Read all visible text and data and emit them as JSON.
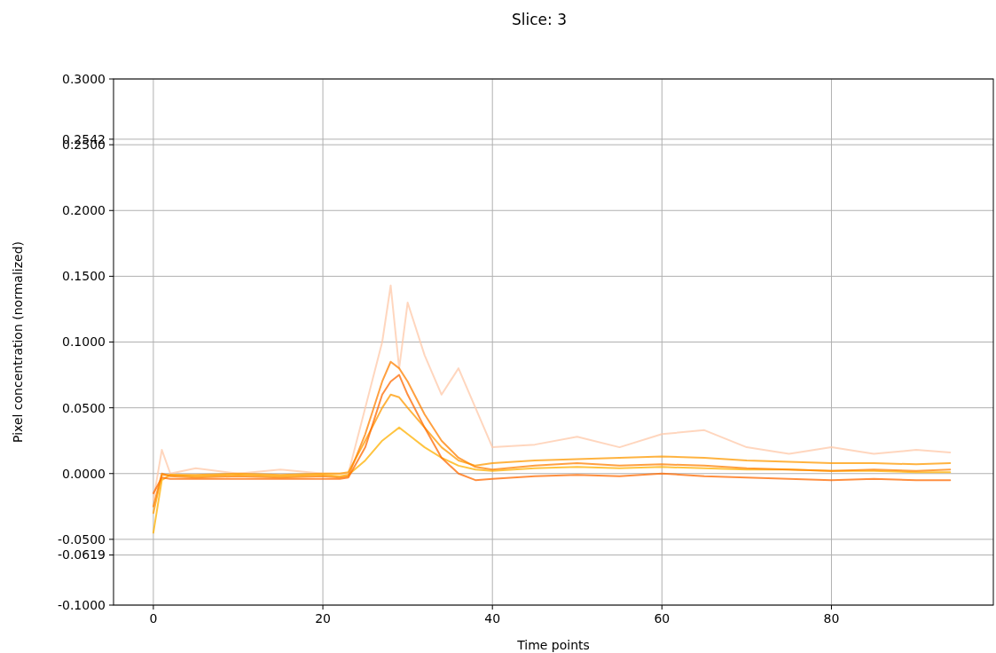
{
  "chart_data": {
    "type": "line",
    "title": "Slice: 3",
    "xlabel": "Time points",
    "ylabel": "Pixel concentration (normalized)",
    "x": [
      0,
      1,
      2,
      5,
      10,
      15,
      20,
      22,
      23,
      25,
      27,
      28,
      29,
      30,
      32,
      34,
      36,
      38,
      40,
      45,
      50,
      55,
      60,
      65,
      70,
      75,
      80,
      85,
      90,
      94
    ],
    "series": [
      {
        "color": "#ffc8a8",
        "values": [
          -0.02,
          0.018,
          0.0,
          0.004,
          0.0,
          0.003,
          0.0,
          0.0,
          0.0,
          0.05,
          0.1,
          0.143,
          0.08,
          0.13,
          0.09,
          0.06,
          0.08,
          0.05,
          0.02,
          0.022,
          0.028,
          0.02,
          0.03,
          0.033,
          0.02,
          0.015,
          0.02,
          0.015,
          0.018,
          0.016
        ]
      },
      {
        "color": "#ffb000",
        "values": [
          -0.045,
          -0.005,
          -0.001,
          -0.002,
          -0.001,
          -0.002,
          -0.001,
          -0.002,
          -0.001,
          0.01,
          0.025,
          0.03,
          0.035,
          0.03,
          0.02,
          0.012,
          0.006,
          0.003,
          0.002,
          0.004,
          0.005,
          0.004,
          0.005,
          0.004,
          0.003,
          0.003,
          0.002,
          0.002,
          0.001,
          0.001
        ]
      },
      {
        "color": "#ff9a00",
        "values": [
          -0.03,
          -0.001,
          -0.001,
          -0.001,
          0.0,
          -0.001,
          0.0,
          0.0,
          0.001,
          0.025,
          0.05,
          0.06,
          0.058,
          0.05,
          0.035,
          0.02,
          0.01,
          0.006,
          0.008,
          0.01,
          0.011,
          0.012,
          0.013,
          0.012,
          0.01,
          0.009,
          0.008,
          0.008,
          0.007,
          0.008
        ]
      },
      {
        "color": "#ff6a00",
        "values": [
          -0.015,
          -0.003,
          -0.004,
          -0.004,
          -0.004,
          -0.004,
          -0.004,
          -0.004,
          -0.003,
          0.02,
          0.06,
          0.07,
          0.075,
          0.06,
          0.035,
          0.012,
          0.0,
          -0.005,
          -0.004,
          -0.002,
          -0.001,
          -0.002,
          0.0,
          -0.002,
          -0.003,
          -0.004,
          -0.005,
          -0.004,
          -0.005,
          -0.005
        ]
      },
      {
        "color": "#ff8000",
        "values": [
          -0.025,
          0.0,
          -0.002,
          -0.003,
          -0.002,
          -0.003,
          -0.002,
          -0.003,
          -0.002,
          0.03,
          0.07,
          0.085,
          0.08,
          0.07,
          0.045,
          0.025,
          0.012,
          0.005,
          0.003,
          0.006,
          0.008,
          0.006,
          0.007,
          0.006,
          0.004,
          0.003,
          0.002,
          0.003,
          0.002,
          0.003
        ]
      }
    ],
    "xlim": [
      -4.7,
      99.1
    ],
    "xticks": [
      0,
      20,
      40,
      60,
      80
    ],
    "ylim": [
      -0.1,
      0.3
    ],
    "yticks": [
      {
        "value": -0.1,
        "label": "-0.1000"
      },
      {
        "value": -0.0619,
        "label": "-0.0619"
      },
      {
        "value": -0.05,
        "label": "-0.0500"
      },
      {
        "value": 0,
        "label": "0.0000"
      },
      {
        "value": 0.05,
        "label": "0.0500"
      },
      {
        "value": 0.1,
        "label": "0.1000"
      },
      {
        "value": 0.15,
        "label": "0.1500"
      },
      {
        "value": 0.2,
        "label": "0.2000"
      },
      {
        "value": 0.25,
        "label": "0.2500"
      },
      {
        "value": 0.2542,
        "label": "0.2542"
      },
      {
        "value": 0.3,
        "label": "0.3000"
      }
    ],
    "grid": true,
    "marker": "none",
    "line_style": "solid"
  }
}
